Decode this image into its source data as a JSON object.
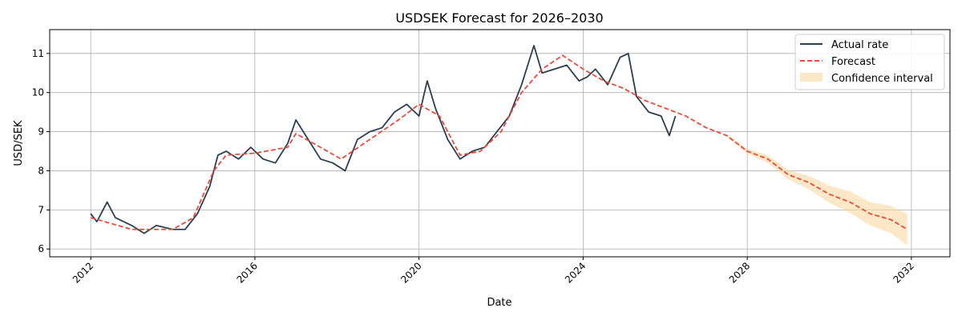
{
  "chart_data": {
    "type": "line",
    "title": "USDSEK Forecast for 2026–2030",
    "xlabel": "Date",
    "ylabel": "USD/SEK",
    "xlim": [
      2011.0,
      2032.94
    ],
    "ylim": [
      5.8,
      11.61
    ],
    "x_ticks": [
      2012,
      2016,
      2020,
      2024,
      2028,
      2032
    ],
    "x_tick_labels": [
      "2012",
      "2016",
      "2020",
      "2024",
      "2028",
      "2032"
    ],
    "y_ticks": [
      6,
      7,
      8,
      9,
      10,
      11
    ],
    "y_tick_labels": [
      "6",
      "7",
      "8",
      "9",
      "10",
      "11"
    ],
    "grid": true,
    "legend_position": "top-right",
    "series": [
      {
        "name": "Actual rate",
        "color": "#2c3e50",
        "style": "solid",
        "x": [
          2012.0,
          2012.15,
          2012.4,
          2012.6,
          2013.0,
          2013.3,
          2013.6,
          2014.0,
          2014.3,
          2014.6,
          2014.9,
          2015.1,
          2015.3,
          2015.6,
          2015.9,
          2016.2,
          2016.5,
          2016.8,
          2017.0,
          2017.3,
          2017.6,
          2017.9,
          2018.2,
          2018.5,
          2018.8,
          2019.1,
          2019.4,
          2019.7,
          2020.0,
          2020.2,
          2020.4,
          2020.7,
          2021.0,
          2021.3,
          2021.6,
          2021.9,
          2022.2,
          2022.5,
          2022.8,
          2023.0,
          2023.3,
          2023.6,
          2023.9,
          2024.1,
          2024.3,
          2024.6,
          2024.9,
          2025.1,
          2025.3,
          2025.6,
          2025.9,
          2026.1,
          2026.25
        ],
        "y": [
          6.9,
          6.7,
          7.2,
          6.8,
          6.6,
          6.4,
          6.6,
          6.5,
          6.5,
          6.9,
          7.6,
          8.4,
          8.5,
          8.3,
          8.6,
          8.3,
          8.2,
          8.7,
          9.3,
          8.8,
          8.3,
          8.2,
          8.0,
          8.8,
          9.0,
          9.1,
          9.5,
          9.7,
          9.4,
          10.3,
          9.6,
          8.8,
          8.3,
          8.5,
          8.6,
          9.0,
          9.4,
          10.2,
          11.2,
          10.5,
          10.6,
          10.7,
          10.3,
          10.4,
          10.6,
          10.2,
          10.9,
          11.0,
          9.9,
          9.5,
          9.4,
          8.9,
          9.4
        ]
      },
      {
        "name": "Forecast",
        "color": "#e74c3c",
        "style": "dashed",
        "x": [
          2012.0,
          2013.0,
          2014.0,
          2014.5,
          2015.0,
          2015.3,
          2016.0,
          2016.8,
          2017.0,
          2017.6,
          2018.1,
          2018.8,
          2019.5,
          2020.0,
          2020.5,
          2021.0,
          2021.5,
          2022.0,
          2022.5,
          2023.0,
          2023.5,
          2024.0,
          2024.5,
          2025.0,
          2025.5,
          2026.0,
          2026.5,
          2027.0,
          2027.5,
          2028.0,
          2028.5,
          2029.0,
          2029.5,
          2030.0,
          2030.5,
          2031.0,
          2031.5,
          2031.9
        ],
        "y": [
          6.8,
          6.5,
          6.5,
          6.8,
          8.0,
          8.4,
          8.45,
          8.6,
          8.95,
          8.6,
          8.3,
          8.8,
          9.3,
          9.7,
          9.4,
          8.4,
          8.5,
          9.0,
          10.0,
          10.6,
          10.95,
          10.6,
          10.3,
          10.1,
          9.8,
          9.6,
          9.4,
          9.1,
          8.9,
          8.5,
          8.3,
          7.9,
          7.7,
          7.4,
          7.2,
          6.9,
          6.75,
          6.5
        ]
      }
    ],
    "confidence_interval": {
      "name": "Confidence interval",
      "color": "#fad7a0",
      "x": [
        2027.5,
        2028.0,
        2028.5,
        2029.0,
        2029.5,
        2030.0,
        2030.5,
        2031.0,
        2031.5,
        2031.9
      ],
      "lower": [
        8.87,
        8.44,
        8.2,
        7.78,
        7.53,
        7.18,
        6.93,
        6.6,
        6.4,
        6.1
      ],
      "upper": [
        8.93,
        8.56,
        8.4,
        8.02,
        7.87,
        7.62,
        7.47,
        7.2,
        7.1,
        6.9
      ]
    }
  }
}
